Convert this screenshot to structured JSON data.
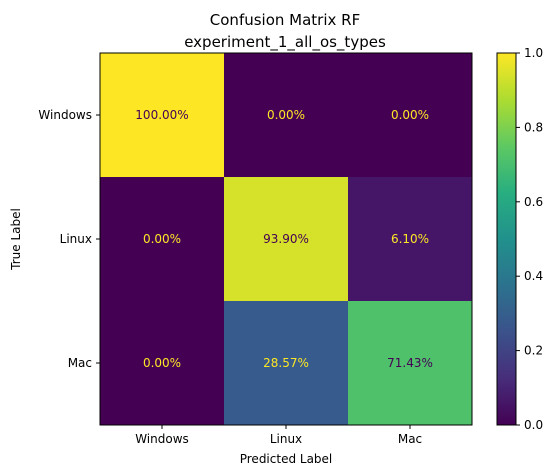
{
  "chart_data": {
    "type": "heatmap",
    "title": "Confusion Matrix RF",
    "subtitle": "experiment_1_all_os_types",
    "xlabel": "Predicted Label",
    "ylabel": "True Label",
    "x_categories": [
      "Windows",
      "Linux",
      "Mac"
    ],
    "y_categories": [
      "Windows",
      "Linux",
      "Mac"
    ],
    "values": [
      [
        1.0,
        0.0,
        0.0
      ],
      [
        0.0,
        0.939,
        0.061
      ],
      [
        0.0,
        0.2857,
        0.7143
      ]
    ],
    "cell_labels": [
      [
        "100.00%",
        "0.00%",
        "0.00%"
      ],
      [
        "0.00%",
        "93.90%",
        "6.10%"
      ],
      [
        "0.00%",
        "28.57%",
        "71.43%"
      ]
    ],
    "colormap": "viridis",
    "colorbar": {
      "range": [
        0,
        1
      ],
      "ticks": [
        "0.0",
        "0.2",
        "0.4",
        "0.6",
        "0.8",
        "1.0"
      ]
    }
  }
}
